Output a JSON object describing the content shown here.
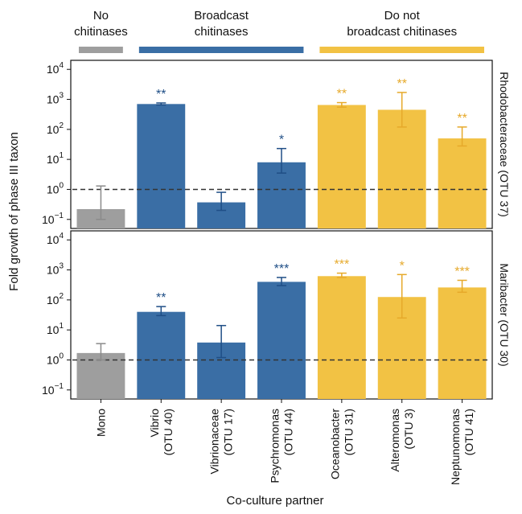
{
  "colors": {
    "none": "#9e9e9e",
    "broadcast": "#3a6ea5",
    "not_broadcast": "#f2c244",
    "dashed_line": "#333333"
  },
  "groups": [
    {
      "label": "No\nchitinases",
      "key": "none",
      "span": [
        0,
        0
      ]
    },
    {
      "label": "Broadcast\nchitinases",
      "key": "broadcast",
      "span": [
        1,
        3
      ]
    },
    {
      "label": "Do not\nbroadcast chitinases",
      "key": "not_broadcast",
      "span": [
        4,
        6
      ]
    }
  ],
  "ylabel": "Fold growth of phase III taxon",
  "xlabel": "Co-culture partner",
  "chart_data": {
    "type": "bar",
    "yscale": "log",
    "ylim": [
      0.05,
      20000
    ],
    "yticks": [
      0.1,
      1,
      10,
      100,
      1000,
      10000
    ],
    "ytick_labels": [
      [
        "10",
        "−1"
      ],
      [
        "10",
        "0"
      ],
      [
        "10",
        "1"
      ],
      [
        "10",
        "2"
      ],
      [
        "10",
        "3"
      ],
      [
        "10",
        "4"
      ]
    ],
    "reference_line": 1,
    "categories": [
      [
        "Mono"
      ],
      [
        "Vibrio",
        "(OTU 40)"
      ],
      [
        "Vibrionaceae",
        "(OTU 17)"
      ],
      [
        "Psychromonas",
        "(OTU 44)"
      ],
      [
        "Oceanobacter",
        "(OTU 31)"
      ],
      [
        "Alteromonas",
        "(OTU 3)"
      ],
      [
        "Neptunomonas",
        "(OTU 41)"
      ]
    ],
    "category_groups": [
      "none",
      "broadcast",
      "broadcast",
      "broadcast",
      "not_broadcast",
      "not_broadcast",
      "not_broadcast"
    ],
    "panels": [
      {
        "label": "Rhodobacteraceae (OTU 37)",
        "values": [
          0.22,
          700,
          0.37,
          8,
          650,
          450,
          50
        ],
        "err_low": [
          0.1,
          650,
          0.2,
          3.5,
          550,
          120,
          28
        ],
        "err_high": [
          1.3,
          760,
          0.8,
          23,
          780,
          1700,
          120
        ],
        "significance": [
          "",
          "**",
          "",
          "*",
          "**",
          "**",
          "**"
        ]
      },
      {
        "label": "Maribacter (OTU 30)",
        "values": [
          1.7,
          40,
          3.8,
          400,
          620,
          125,
          260
        ],
        "err_low": [
          1.0,
          30,
          1.2,
          300,
          560,
          25,
          180
        ],
        "err_high": [
          3.5,
          60,
          14,
          560,
          780,
          700,
          450
        ],
        "significance": [
          "",
          "**",
          "",
          "***",
          "***",
          "*",
          "***"
        ]
      }
    ]
  }
}
